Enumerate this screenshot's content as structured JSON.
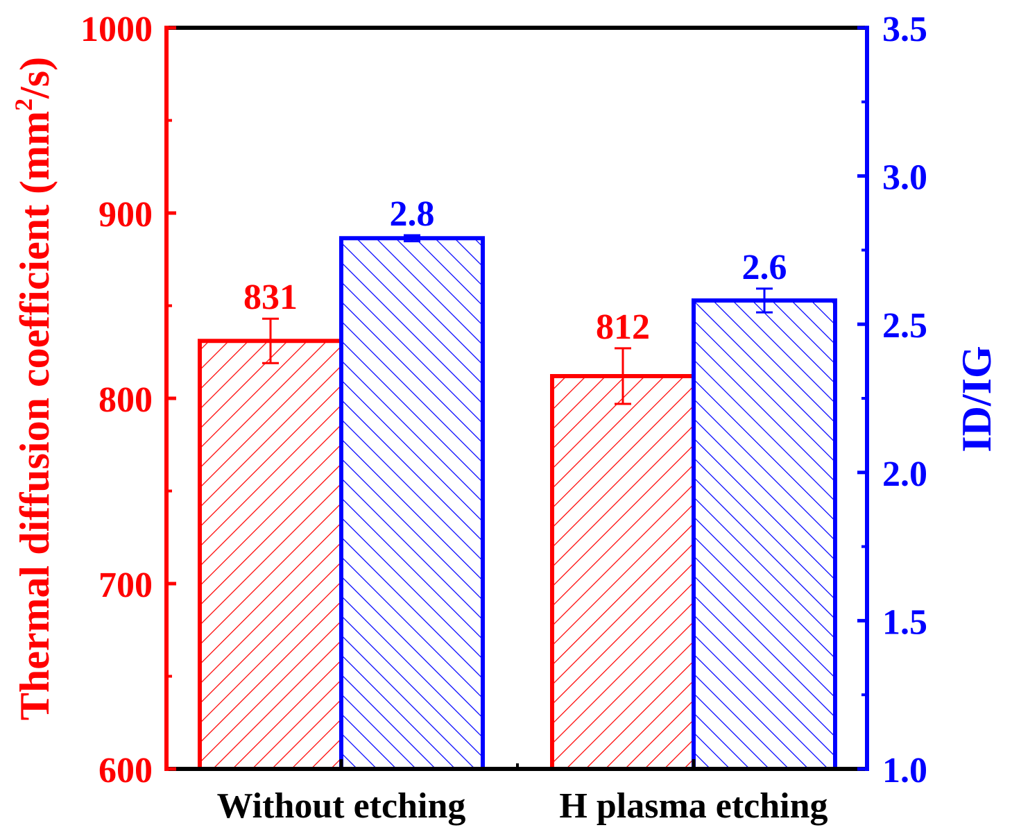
{
  "colors": {
    "left": "#ff0000",
    "right": "#0000ff",
    "frame": "#000000"
  },
  "chart_data": {
    "type": "bar",
    "categories": [
      "Without etching",
      "H plasma etching"
    ],
    "ylabel_left": "Thermal diffusion coefficient (mm",
    "ylabel_left_sup": "2",
    "ylabel_left_suffix": "/s)",
    "ylabel_right": "ID/IG",
    "ylim_left": [
      600,
      1000
    ],
    "ylim_right": [
      1.0,
      3.5
    ],
    "yticks_left": [
      "600",
      "700",
      "800",
      "900",
      "1000"
    ],
    "yticks_right": [
      "1.0",
      "1.5",
      "2.0",
      "2.5",
      "3.0",
      "3.5"
    ],
    "grid": false,
    "series": [
      {
        "axis": "left",
        "values": [
          831,
          812
        ],
        "errors": [
          12,
          15
        ],
        "labels": [
          "831",
          "812"
        ],
        "hatch": "forward"
      },
      {
        "axis": "right",
        "values": [
          2.79,
          2.58
        ],
        "errors": [
          0.01,
          0.04
        ],
        "labels": [
          "2.8",
          "2.6"
        ],
        "hatch": "backward"
      }
    ]
  }
}
